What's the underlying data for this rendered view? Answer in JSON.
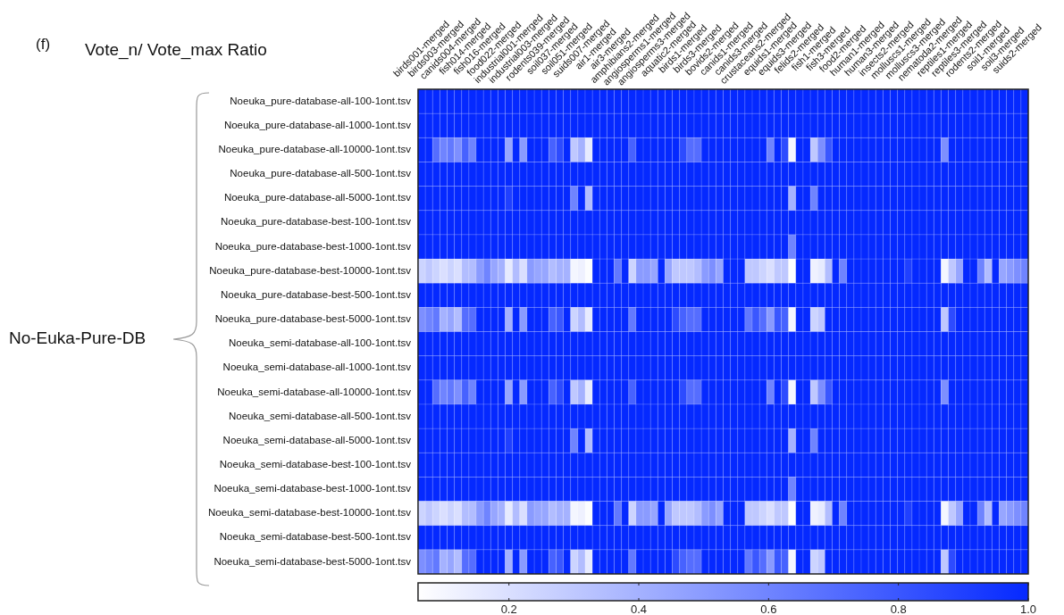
{
  "chart_data": {
    "type": "heatmap",
    "title": "Vote_n/ Vote_max Ratio",
    "ylabel": "No-Euka-Pure-DB",
    "annotations": [
      "(f)"
    ],
    "color": "#0529ff",
    "grid": true,
    "categories": [
      "birds001-merged",
      null,
      "birds003-merged",
      null,
      "canids004-merged",
      null,
      "fish014-merged",
      null,
      "fish016-merged",
      null,
      "food022-merged",
      null,
      "industrial001-merged",
      null,
      "industrial003-merged",
      null,
      "rodents039-merged",
      null,
      "soil037-merged",
      null,
      "soil051-merged",
      null,
      "suids007-merged",
      null,
      "air1-merged",
      null,
      "air3-merged",
      null,
      "amphibians2-merged",
      null,
      "angiosperms1-merged",
      null,
      "angiosperms3-merged",
      null,
      "aquatic2-merged",
      null,
      "birds1-merged",
      null,
      "birds3-merged",
      null,
      "bovids2-merged",
      null,
      "canids1-merged",
      null,
      "canids3-merged",
      null,
      "crustaceans2-merged",
      null,
      "equids1-merged",
      null,
      "equids3-merged",
      null,
      "felids2-merged",
      null,
      "fish1-merged",
      null,
      "fish3-merged",
      null,
      "food2-merged",
      null,
      "human1-merged",
      null,
      "human3-merged",
      null,
      "insects2-merged",
      null,
      "molluscs1-merged",
      null,
      "molluscs3-merged",
      null,
      "nematoda2-merged",
      null,
      "reptiles1-merged",
      null,
      "reptiles3-merged",
      null,
      "rodents2-merged",
      null,
      "soil1-merged",
      null,
      "soil3-merged",
      null,
      "suids2-merged",
      null
    ],
    "y_categories": [
      "Noeuka_pure-database-all-100-1ont.tsv",
      "Noeuka_pure-database-all-1000-1ont.tsv",
      "Noeuka_pure-database-all-10000-1ont.tsv",
      "Noeuka_pure-database-all-500-1ont.tsv",
      "Noeuka_pure-database-all-5000-1ont.tsv",
      "Noeuka_pure-database-best-100-1ont.tsv",
      "Noeuka_pure-database-best-1000-1ont.tsv",
      "Noeuka_pure-database-best-10000-1ont.tsv",
      "Noeuka_pure-database-best-500-1ont.tsv",
      "Noeuka_pure-database-best-5000-1ont.tsv",
      "Noeuka_semi-database-all-100-1ont.tsv",
      "Noeuka_semi-database-all-1000-1ont.tsv",
      "Noeuka_semi-database-all-10000-1ont.tsv",
      "Noeuka_semi-database-all-500-1ont.tsv",
      "Noeuka_semi-database-all-5000-1ont.tsv",
      "Noeuka_semi-database-best-100-1ont.tsv",
      "Noeuka_semi-database-best-1000-1ont.tsv",
      "Noeuka_semi-database-best-10000-1ont.tsv",
      "Noeuka_semi-database-best-500-1ont.tsv",
      "Noeuka_semi-database-best-5000-1ont.tsv"
    ],
    "cells": [
      [
        1,
        1,
        1,
        1,
        1,
        1,
        1,
        1,
        1,
        1,
        1,
        1,
        1,
        1,
        1,
        1,
        1,
        1,
        1,
        1,
        1,
        1,
        1,
        1,
        1,
        1,
        1,
        1,
        1,
        1,
        1,
        1,
        1,
        1,
        1,
        1,
        1,
        1,
        1,
        1,
        1,
        1,
        1,
        1,
        1,
        1,
        1,
        1,
        1,
        1,
        1,
        1,
        1,
        1,
        1,
        1,
        1,
        1,
        1,
        1,
        1,
        1,
        1,
        1,
        1,
        1,
        1,
        1,
        1,
        1,
        1,
        1,
        1,
        1,
        1,
        1,
        1,
        1,
        1,
        1,
        1,
        1,
        1,
        1
      ],
      [
        1,
        1,
        1,
        1,
        1,
        1,
        1,
        1,
        1,
        1,
        1,
        1,
        1,
        1,
        1,
        1,
        1,
        1,
        1,
        1,
        1,
        1,
        1,
        1,
        1,
        1,
        1,
        1,
        1,
        1,
        1,
        1,
        1,
        1,
        1,
        1,
        1,
        1,
        1,
        1,
        1,
        1,
        1,
        1,
        1,
        1,
        1,
        1,
        1,
        1,
        1,
        1,
        1,
        1,
        1,
        1,
        1,
        1,
        1,
        1,
        1,
        1,
        1,
        1,
        1,
        1,
        1,
        1,
        1,
        1,
        1,
        1,
        1,
        1,
        1,
        1,
        1,
        1,
        1,
        1,
        1,
        1,
        1,
        1
      ],
      [
        1,
        1,
        0.7,
        0.6,
        0.65,
        0.55,
        0.75,
        0.6,
        1,
        1,
        1,
        1,
        0.45,
        1,
        0.5,
        1,
        1,
        1,
        0.75,
        0.85,
        1,
        0.3,
        0.4,
        0.15,
        1,
        1,
        1,
        1,
        1,
        0.75,
        1,
        1,
        1,
        1,
        1,
        1,
        0.85,
        0.7,
        0.7,
        1,
        1,
        1,
        1,
        1,
        1,
        1,
        1,
        1,
        0.6,
        1,
        0.85,
        0.1,
        1,
        1,
        0.3,
        0.55,
        0.8,
        1,
        1,
        1,
        1,
        1,
        1,
        1,
        1,
        1,
        1,
        1,
        1,
        1,
        1,
        1,
        0.55,
        1,
        1,
        1,
        1,
        1,
        1,
        1,
        1,
        1,
        1,
        1
      ],
      [
        1,
        1,
        1,
        1,
        1,
        1,
        1,
        1,
        1,
        1,
        1,
        1,
        1,
        1,
        1,
        1,
        1,
        1,
        1,
        1,
        1,
        1,
        1,
        1,
        1,
        1,
        1,
        1,
        1,
        1,
        1,
        1,
        1,
        1,
        1,
        1,
        1,
        1,
        1,
        1,
        1,
        1,
        1,
        1,
        1,
        1,
        1,
        1,
        1,
        1,
        1,
        1,
        1,
        1,
        1,
        1,
        1,
        1,
        1,
        1,
        1,
        1,
        1,
        1,
        1,
        1,
        1,
        1,
        1,
        1,
        1,
        1,
        1,
        1,
        1,
        1,
        1,
        1,
        1,
        1,
        1,
        1,
        1,
        1
      ],
      [
        1,
        1,
        1,
        1,
        1,
        1,
        1,
        1,
        1,
        1,
        1,
        1,
        0.9,
        1,
        1,
        1,
        1,
        1,
        1,
        1,
        1,
        0.6,
        1,
        0.35,
        1,
        1,
        1,
        1,
        1,
        1,
        1,
        1,
        1,
        1,
        1,
        1,
        1,
        1,
        1,
        1,
        1,
        1,
        1,
        1,
        1,
        1,
        1,
        1,
        1,
        1,
        1,
        0.4,
        1,
        1,
        0.6,
        1,
        1,
        1,
        1,
        1,
        1,
        1,
        1,
        1,
        1,
        1,
        1,
        1,
        1,
        1,
        1,
        1,
        1,
        1,
        1,
        1,
        1,
        1,
        1,
        1,
        1,
        1,
        1,
        1
      ],
      [
        1,
        1,
        1,
        1,
        1,
        1,
        1,
        1,
        1,
        1,
        1,
        1,
        1,
        1,
        1,
        1,
        1,
        1,
        1,
        1,
        1,
        1,
        1,
        1,
        1,
        1,
        1,
        1,
        1,
        1,
        1,
        1,
        1,
        1,
        1,
        1,
        1,
        1,
        1,
        1,
        1,
        1,
        1,
        1,
        1,
        1,
        1,
        1,
        1,
        1,
        1,
        1,
        1,
        1,
        1,
        1,
        1,
        1,
        1,
        1,
        1,
        1,
        1,
        1,
        1,
        1,
        1,
        1,
        1,
        1,
        1,
        1,
        1,
        1,
        1,
        1,
        1,
        1,
        1,
        1,
        1,
        1,
        1,
        1
      ],
      [
        1,
        1,
        1,
        1,
        1,
        1,
        1,
        1,
        1,
        1,
        1,
        1,
        1,
        1,
        1,
        1,
        1,
        1,
        1,
        1,
        1,
        1,
        1,
        1,
        1,
        1,
        1,
        1,
        1,
        1,
        1,
        1,
        1,
        1,
        1,
        1,
        1,
        1,
        1,
        1,
        1,
        1,
        1,
        1,
        1,
        1,
        1,
        1,
        1,
        1,
        1,
        0.6,
        1,
        1,
        1,
        1,
        1,
        1,
        1,
        1,
        1,
        1,
        1,
        1,
        1,
        1,
        1,
        1,
        1,
        1,
        1,
        1,
        1,
        1,
        1,
        1,
        1,
        1,
        1,
        1,
        1,
        1,
        1,
        1
      ],
      [
        0.25,
        0.3,
        0.25,
        0.2,
        0.25,
        0.2,
        0.35,
        0.35,
        0.5,
        0.6,
        0.45,
        0.4,
        0.15,
        0.35,
        0.2,
        0.5,
        0.45,
        0.45,
        0.35,
        0.4,
        0.4,
        0.1,
        0.12,
        0.07,
        1,
        1,
        1,
        0.65,
        1,
        0.25,
        0.5,
        0.5,
        0.45,
        1,
        0.45,
        0.3,
        0.3,
        0.3,
        0.35,
        0.5,
        0.55,
        0.45,
        1,
        1,
        1,
        0.3,
        0.3,
        0.25,
        0.2,
        0.3,
        0.3,
        0.07,
        1,
        1,
        0.12,
        0.15,
        0.35,
        1,
        0.6,
        1,
        1,
        1,
        1,
        1,
        1,
        1,
        1,
        0.9,
        1,
        1,
        1,
        1,
        0.1,
        0.3,
        0.45,
        1,
        1,
        0.6,
        0.35,
        1,
        0.45,
        0.5,
        0.55,
        0.6
      ],
      [
        1,
        1,
        1,
        1,
        1,
        1,
        1,
        1,
        1,
        1,
        1,
        1,
        1,
        1,
        1,
        1,
        1,
        1,
        1,
        1,
        1,
        1,
        1,
        1,
        1,
        1,
        1,
        1,
        1,
        1,
        1,
        1,
        1,
        1,
        1,
        1,
        1,
        1,
        1,
        1,
        1,
        1,
        1,
        1,
        1,
        1,
        1,
        1,
        1,
        1,
        1,
        1,
        1,
        1,
        1,
        1,
        1,
        1,
        1,
        1,
        1,
        1,
        1,
        1,
        1,
        1,
        1,
        1,
        1,
        1,
        1,
        1,
        1,
        1,
        1,
        1,
        1,
        1,
        1,
        1,
        1,
        1,
        1,
        1
      ],
      [
        0.55,
        0.6,
        0.65,
        0.4,
        0.45,
        0.35,
        0.7,
        0.7,
        1,
        1,
        1,
        1,
        0.4,
        1,
        0.5,
        1,
        1,
        1,
        0.75,
        0.8,
        1,
        0.25,
        0.35,
        0.15,
        1,
        1,
        1,
        1,
        1,
        0.65,
        1,
        1,
        1,
        1,
        1,
        0.85,
        0.75,
        0.7,
        0.7,
        1,
        1,
        1,
        1,
        1,
        1,
        0.65,
        0.8,
        0.7,
        0.5,
        0.8,
        0.75,
        0.1,
        1,
        1,
        0.25,
        0.3,
        1,
        1,
        1,
        1,
        1,
        1,
        1,
        1,
        1,
        1,
        1,
        1,
        1,
        1,
        1,
        1,
        0.3,
        0.85,
        1,
        1,
        1,
        1,
        1,
        1,
        1,
        1,
        1,
        1
      ],
      [
        1,
        1,
        1,
        1,
        1,
        1,
        1,
        1,
        1,
        1,
        1,
        1,
        1,
        1,
        1,
        1,
        1,
        1,
        1,
        1,
        1,
        1,
        1,
        1,
        1,
        1,
        1,
        1,
        1,
        1,
        1,
        1,
        1,
        1,
        1,
        1,
        1,
        1,
        1,
        1,
        1,
        1,
        1,
        1,
        1,
        1,
        1,
        1,
        1,
        1,
        1,
        1,
        1,
        1,
        1,
        1,
        1,
        1,
        1,
        1,
        1,
        1,
        1,
        1,
        1,
        1,
        1,
        1,
        1,
        1,
        1,
        1,
        1,
        1,
        1,
        1,
        1,
        1,
        1,
        1,
        1,
        1,
        1,
        1
      ],
      [
        1,
        1,
        1,
        1,
        1,
        1,
        1,
        1,
        1,
        1,
        1,
        1,
        1,
        1,
        1,
        1,
        1,
        1,
        1,
        1,
        1,
        1,
        1,
        1,
        1,
        1,
        1,
        1,
        1,
        1,
        1,
        1,
        1,
        1,
        1,
        1,
        1,
        1,
        1,
        1,
        1,
        1,
        1,
        1,
        1,
        1,
        1,
        1,
        1,
        1,
        1,
        1,
        1,
        1,
        1,
        1,
        1,
        1,
        1,
        1,
        1,
        1,
        1,
        1,
        1,
        1,
        1,
        1,
        1,
        1,
        1,
        1,
        1,
        1,
        1,
        1,
        1,
        1,
        1,
        1,
        1,
        1,
        1,
        1
      ],
      [
        1,
        1,
        0.7,
        0.6,
        0.65,
        0.55,
        0.75,
        0.6,
        1,
        1,
        1,
        1,
        0.45,
        1,
        0.5,
        1,
        1,
        1,
        0.75,
        0.85,
        1,
        0.3,
        0.4,
        0.15,
        1,
        1,
        1,
        1,
        1,
        0.75,
        1,
        1,
        1,
        1,
        1,
        1,
        0.85,
        0.7,
        0.7,
        1,
        1,
        1,
        1,
        1,
        1,
        1,
        1,
        1,
        0.6,
        1,
        0.85,
        0.1,
        1,
        1,
        0.3,
        0.55,
        0.8,
        1,
        1,
        1,
        1,
        1,
        1,
        1,
        1,
        1,
        1,
        1,
        1,
        1,
        1,
        1,
        0.55,
        1,
        1,
        1,
        1,
        1,
        1,
        1,
        1,
        1,
        1,
        1
      ],
      [
        1,
        1,
        1,
        1,
        1,
        1,
        1,
        1,
        1,
        1,
        1,
        1,
        1,
        1,
        1,
        1,
        1,
        1,
        1,
        1,
        1,
        1,
        1,
        1,
        1,
        1,
        1,
        1,
        1,
        1,
        1,
        1,
        1,
        1,
        1,
        1,
        1,
        1,
        1,
        1,
        1,
        1,
        1,
        1,
        1,
        1,
        1,
        1,
        1,
        1,
        1,
        1,
        1,
        1,
        1,
        1,
        1,
        1,
        1,
        1,
        1,
        1,
        1,
        1,
        1,
        1,
        1,
        1,
        1,
        1,
        1,
        1,
        1,
        1,
        1,
        1,
        1,
        1,
        1,
        1,
        1,
        1,
        1,
        1
      ],
      [
        1,
        1,
        1,
        1,
        1,
        1,
        1,
        1,
        1,
        1,
        1,
        1,
        0.9,
        1,
        1,
        1,
        1,
        1,
        1,
        1,
        1,
        0.6,
        1,
        0.35,
        1,
        1,
        1,
        1,
        1,
        1,
        1,
        1,
        1,
        1,
        1,
        1,
        1,
        1,
        1,
        1,
        1,
        1,
        1,
        1,
        1,
        1,
        1,
        1,
        1,
        1,
        1,
        0.4,
        1,
        1,
        0.6,
        1,
        1,
        1,
        1,
        1,
        1,
        1,
        1,
        1,
        1,
        1,
        1,
        1,
        1,
        1,
        1,
        1,
        1,
        1,
        1,
        1,
        1,
        1,
        1,
        1,
        1,
        1,
        1,
        1
      ],
      [
        1,
        1,
        1,
        1,
        1,
        1,
        1,
        1,
        1,
        1,
        1,
        1,
        1,
        1,
        1,
        1,
        1,
        1,
        1,
        1,
        1,
        1,
        1,
        1,
        1,
        1,
        1,
        1,
        1,
        1,
        1,
        1,
        1,
        1,
        1,
        1,
        1,
        1,
        1,
        1,
        1,
        1,
        1,
        1,
        1,
        1,
        1,
        1,
        1,
        1,
        1,
        1,
        1,
        1,
        1,
        1,
        1,
        1,
        1,
        1,
        1,
        1,
        1,
        1,
        1,
        1,
        1,
        1,
        1,
        1,
        1,
        1,
        1,
        1,
        1,
        1,
        1,
        1,
        1,
        1,
        1,
        1,
        1,
        1
      ],
      [
        1,
        1,
        1,
        1,
        1,
        1,
        1,
        1,
        1,
        1,
        1,
        1,
        1,
        1,
        1,
        1,
        1,
        1,
        1,
        1,
        1,
        1,
        1,
        1,
        1,
        1,
        1,
        1,
        1,
        1,
        1,
        1,
        1,
        1,
        1,
        1,
        1,
        1,
        1,
        1,
        1,
        1,
        1,
        1,
        1,
        1,
        1,
        1,
        1,
        1,
        1,
        0.6,
        1,
        1,
        1,
        1,
        1,
        1,
        1,
        1,
        1,
        1,
        1,
        1,
        1,
        1,
        1,
        1,
        1,
        1,
        1,
        1,
        1,
        1,
        1,
        1,
        1,
        1,
        1,
        1,
        1,
        1,
        1,
        1
      ],
      [
        0.25,
        0.3,
        0.25,
        0.2,
        0.25,
        0.2,
        0.35,
        0.35,
        0.5,
        0.6,
        0.45,
        0.4,
        0.15,
        0.35,
        0.2,
        0.5,
        0.45,
        0.45,
        0.35,
        0.4,
        0.4,
        0.1,
        0.12,
        0.07,
        1,
        1,
        1,
        0.65,
        1,
        0.25,
        0.5,
        0.5,
        0.45,
        1,
        0.45,
        0.3,
        0.3,
        0.3,
        0.35,
        0.5,
        0.55,
        0.45,
        1,
        1,
        1,
        0.3,
        0.3,
        0.25,
        0.2,
        0.3,
        0.3,
        0.07,
        1,
        1,
        0.12,
        0.15,
        0.35,
        1,
        0.6,
        1,
        1,
        1,
        1,
        1,
        1,
        1,
        1,
        0.9,
        1,
        1,
        1,
        1,
        0.1,
        0.3,
        0.45,
        1,
        1,
        0.6,
        0.35,
        1,
        0.45,
        0.5,
        0.55,
        0.6
      ],
      [
        1,
        1,
        1,
        1,
        1,
        1,
        1,
        1,
        1,
        1,
        1,
        1,
        1,
        1,
        1,
        1,
        1,
        1,
        1,
        1,
        1,
        1,
        1,
        1,
        1,
        1,
        1,
        1,
        1,
        1,
        1,
        1,
        1,
        1,
        1,
        1,
        1,
        1,
        1,
        1,
        1,
        1,
        1,
        1,
        1,
        1,
        1,
        1,
        1,
        1,
        1,
        1,
        1,
        1,
        1,
        1,
        1,
        1,
        1,
        1,
        1,
        1,
        1,
        1,
        1,
        1,
        1,
        1,
        1,
        1,
        1,
        1,
        1,
        1,
        1,
        1,
        1,
        1,
        1,
        1,
        1,
        1,
        1,
        1
      ],
      [
        0.55,
        0.6,
        0.65,
        0.4,
        0.45,
        0.35,
        0.7,
        0.7,
        1,
        1,
        1,
        1,
        0.4,
        1,
        0.5,
        1,
        1,
        1,
        0.75,
        0.8,
        1,
        0.25,
        0.35,
        0.15,
        1,
        1,
        1,
        1,
        1,
        0.65,
        1,
        1,
        1,
        1,
        1,
        0.85,
        0.75,
        0.7,
        0.7,
        1,
        1,
        1,
        1,
        1,
        1,
        0.65,
        0.8,
        0.7,
        0.5,
        0.8,
        0.75,
        0.1,
        1,
        1,
        0.25,
        0.3,
        1,
        1,
        1,
        1,
        1,
        1,
        1,
        1,
        1,
        1,
        1,
        1,
        1,
        1,
        1,
        1,
        0.3,
        0.85,
        1,
        1,
        1,
        1,
        1,
        1,
        1,
        1,
        1,
        1
      ]
    ],
    "clim": [
      0.06,
      1
    ],
    "cticks": [
      0.2,
      0.4,
      0.6,
      0.8,
      {
        "value": 1,
        "label": "1.0"
      }
    ]
  }
}
